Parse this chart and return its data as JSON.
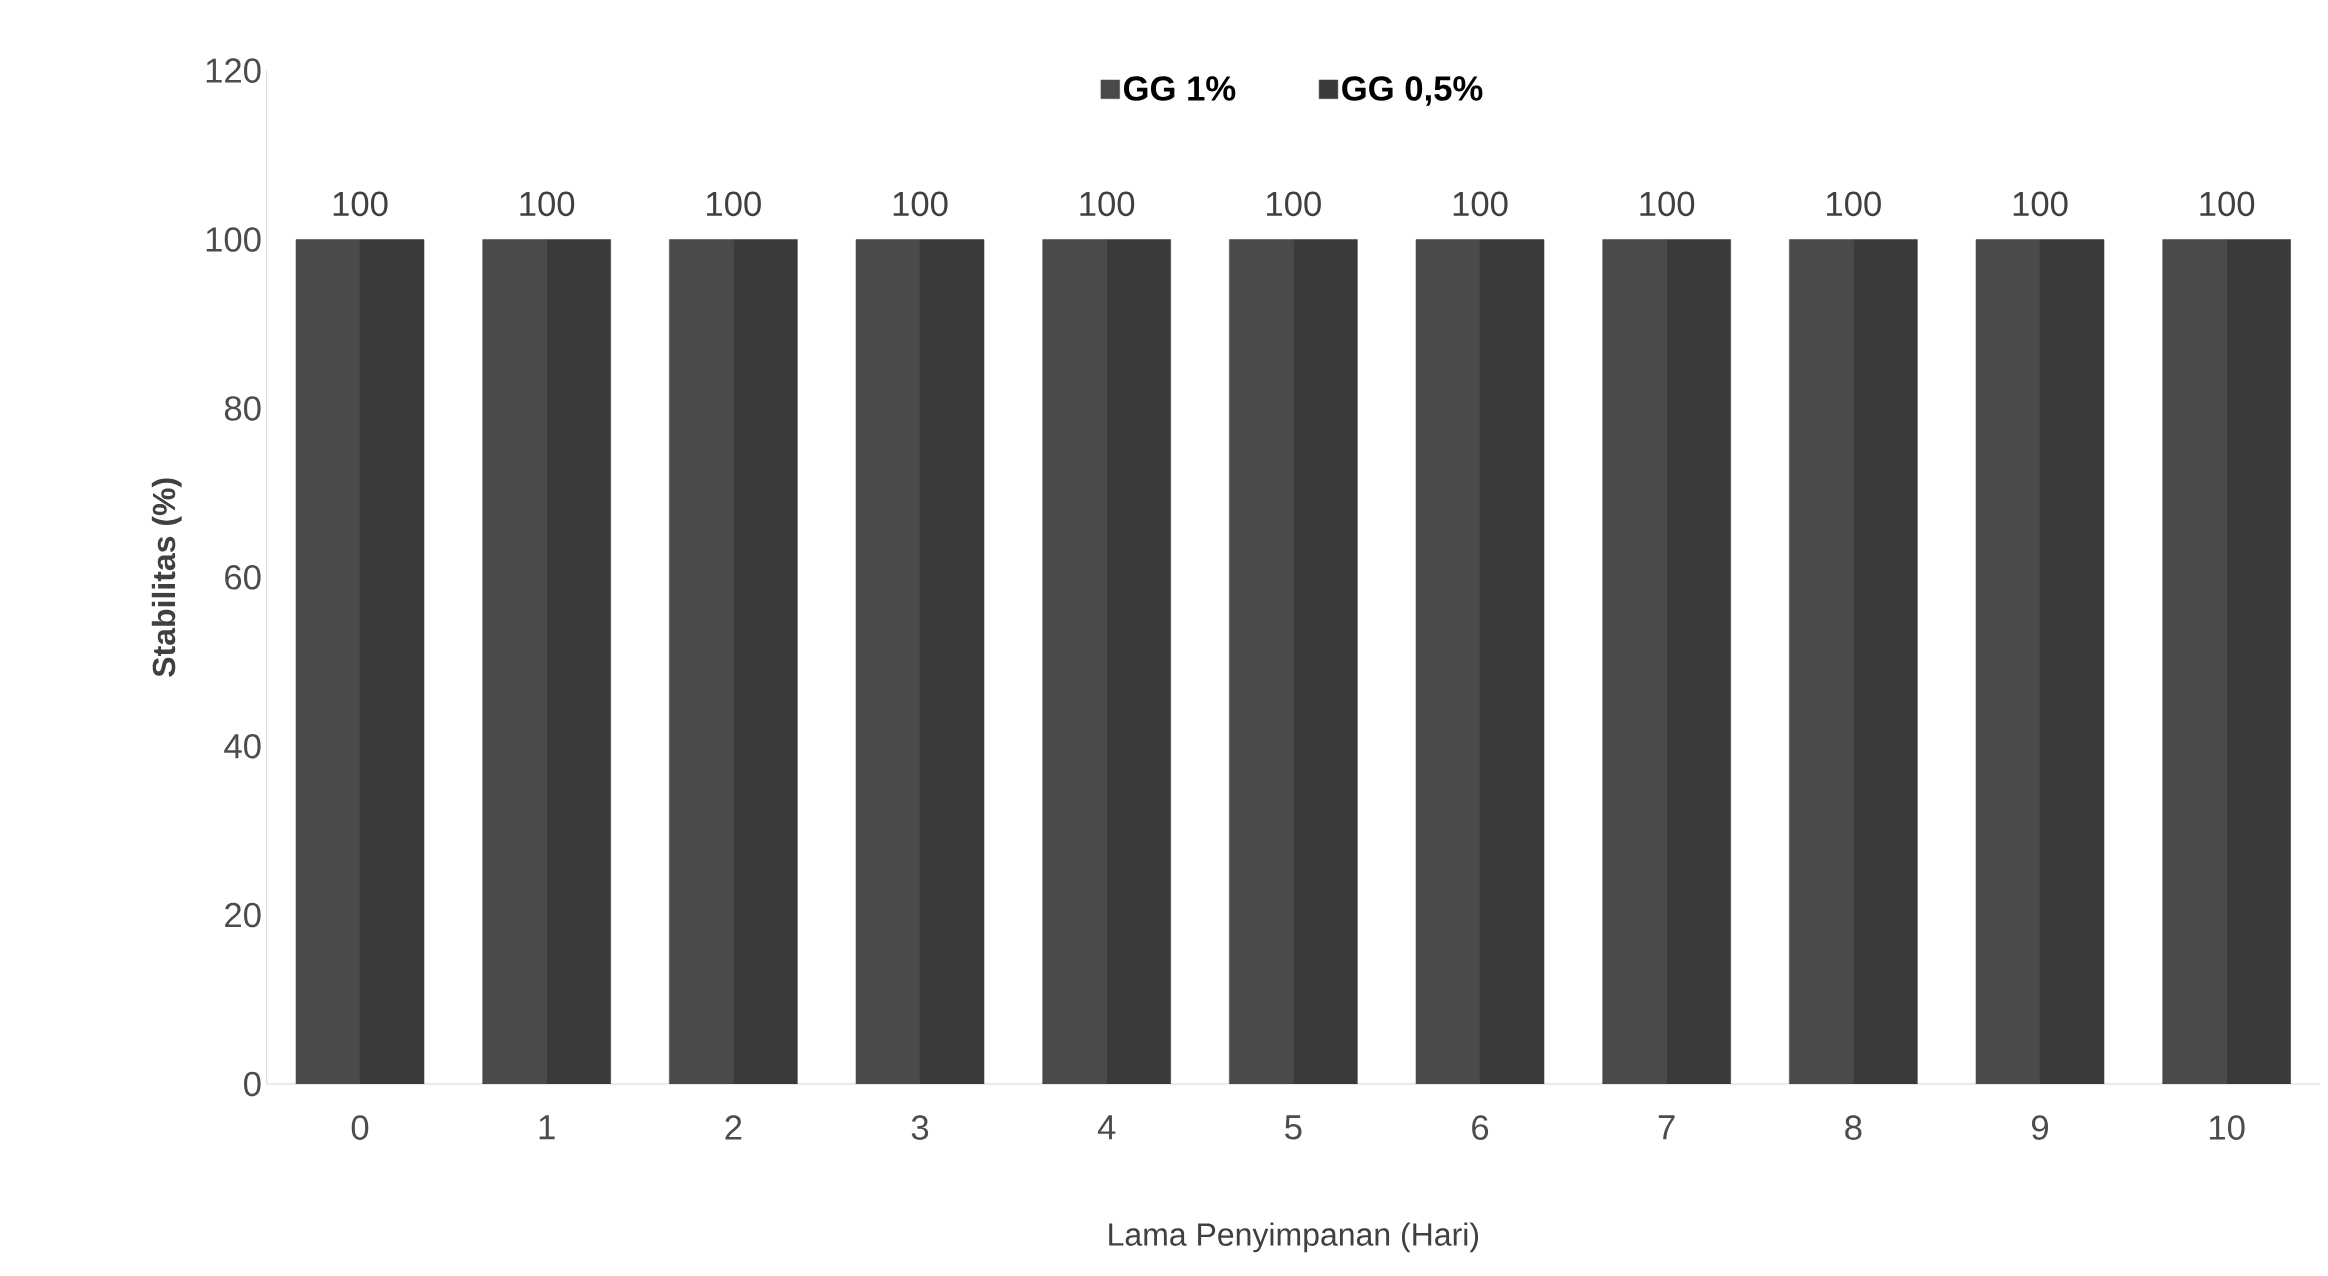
{
  "chart_data": {
    "type": "bar",
    "xlabel": "Lama Penyimpanan (Hari)",
    "ylabel": "Stabilitas (%)",
    "categories": [
      "0",
      "1",
      "2",
      "3",
      "4",
      "5",
      "6",
      "7",
      "8",
      "9",
      "10"
    ],
    "series": [
      {
        "name": "GG 1%",
        "color": "#4a4a4a",
        "values": [
          100,
          100,
          100,
          100,
          100,
          100,
          100,
          100,
          100,
          100,
          100
        ],
        "value_labels": [
          "100",
          "100",
          "100",
          "100",
          "100",
          "100",
          "100",
          "100",
          "100",
          "100",
          "100"
        ]
      },
      {
        "name": "GG 0,5%",
        "color": "#3a3a3a",
        "values": [
          100,
          100,
          100,
          100,
          100,
          100,
          100,
          100,
          100,
          100,
          100
        ]
      }
    ],
    "ylim": [
      0,
      120
    ],
    "yticks": [
      0,
      20,
      40,
      60,
      80,
      100,
      120
    ],
    "legend": "top",
    "grid": false
  }
}
